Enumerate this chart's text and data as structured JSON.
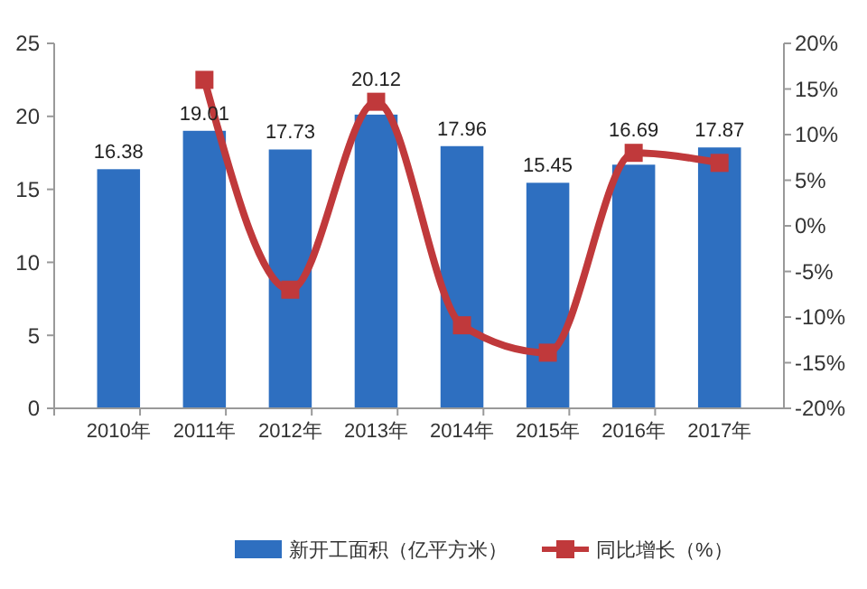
{
  "chart_data": {
    "type": "bar",
    "categories": [
      "2010年",
      "2011年",
      "2012年",
      "2013年",
      "2014年",
      "2015年",
      "2016年",
      "2017年"
    ],
    "series": [
      {
        "name": "新开工面积（亿平方米）",
        "color": "#2e6fc0",
        "values": [
          16.38,
          19.01,
          17.73,
          20.12,
          17.96,
          15.45,
          16.69,
          17.87
        ],
        "value_labels": [
          "16.38",
          "19.01",
          "17.73",
          "20.12",
          "17.96",
          "15.45",
          "16.69",
          "17.87"
        ]
      },
      {
        "name": "同比增长（%）",
        "type": "line",
        "axis": "y2",
        "color": "#c0393b",
        "marker": "square",
        "values": [
          null,
          16.0,
          -7.0,
          13.6,
          -10.9,
          -13.9,
          8.0,
          6.9
        ]
      }
    ],
    "ylim": [
      0,
      25
    ],
    "yticks": [
      0,
      5,
      10,
      15,
      20,
      25
    ],
    "y2lim": [
      -20,
      20
    ],
    "y2ticks": [
      {
        "value": -20,
        "label": "-20%"
      },
      {
        "value": -15,
        "label": "-15%"
      },
      {
        "value": -10,
        "label": "-10%"
      },
      {
        "value": -5,
        "label": "-5%"
      },
      {
        "value": 0,
        "label": "0%"
      },
      {
        "value": 5,
        "label": "5%"
      },
      {
        "value": 10,
        "label": "10%"
      },
      {
        "value": 15,
        "label": "15%"
      },
      {
        "value": 20,
        "label": "20%"
      }
    ],
    "legend": "bottom"
  }
}
